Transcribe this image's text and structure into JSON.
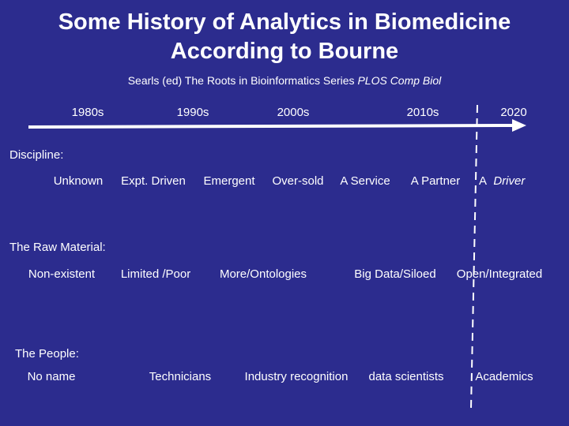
{
  "title": {
    "line1": "Some History of Analytics in Biomedicine",
    "line2": "According to Bourne"
  },
  "subtitle": {
    "text": "Searls (ed) The Roots in Bioinformatics Series ",
    "journal": "PLOS Comp Biol"
  },
  "timeline": {
    "labels": [
      "1980s",
      "1990s",
      "2000s",
      "2010s",
      "2020"
    ]
  },
  "discipline": {
    "heading": "Discipline:",
    "items": [
      "Unknown",
      "Expt. Driven",
      "Emergent",
      "Over-sold",
      "A Service",
      "A Partner"
    ],
    "last_prefix": "A",
    "last_italic": "Driver"
  },
  "raw_material": {
    "heading": "The Raw Material:",
    "items": [
      "Non-existent",
      "Limited /Poor",
      "More/Ontologies",
      "Big Data/Siloed",
      "Open/Integrated"
    ]
  },
  "people": {
    "heading": "The People:",
    "items": [
      "No name",
      "Technicians",
      "Industry recognition",
      "data scientists",
      "Academics"
    ]
  },
  "colors": {
    "background": "#2c2c8e",
    "text": "#ffffff"
  }
}
